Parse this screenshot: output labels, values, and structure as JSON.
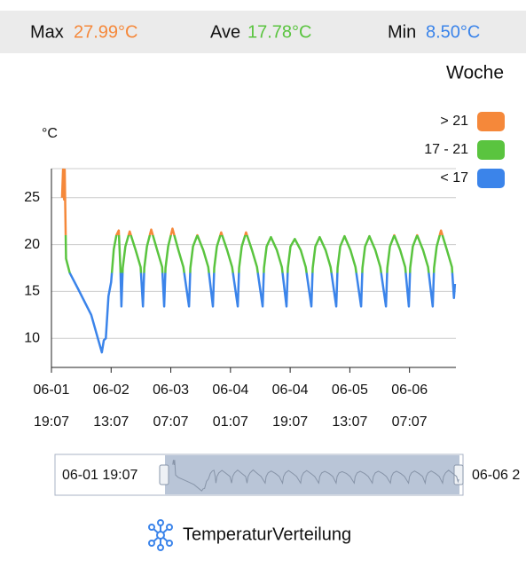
{
  "header": {
    "max_label": "Max",
    "max_value": "27.99°C",
    "ave_label": "Ave",
    "ave_value": "17.78°C",
    "min_label": "Min",
    "min_value": "8.50°C"
  },
  "chart_data": {
    "type": "line",
    "period": "Woche",
    "y_label": "°C",
    "bands": [
      {
        "label": "> 21",
        "color": "#f5883a",
        "min": 21
      },
      {
        "label": "17 - 21",
        "color": "#5ac43f",
        "min": 17,
        "max": 21
      },
      {
        "label": "< 17",
        "color": "#3b84ea",
        "max": 17
      }
    ],
    "xlim": [
      0,
      122
    ],
    "ylim": [
      6.9,
      28.1
    ],
    "yticks": [
      10,
      15,
      20,
      25
    ],
    "xticks": [
      {
        "value": 0,
        "label": "06-01 19:07"
      },
      {
        "value": 18,
        "label": "06-02 13:07"
      },
      {
        "value": 36,
        "label": "06-03 07:07"
      },
      {
        "value": 54,
        "label": "06-04 01:07"
      },
      {
        "value": 72,
        "label": "06-04 19:07"
      },
      {
        "value": 90,
        "label": "06-05 13:07"
      },
      {
        "value": 108,
        "label": "06-06 07:07"
      }
    ],
    "x": [
      3.2,
      3.5,
      3.8,
      4.0,
      4.4,
      5.5,
      8,
      12,
      15.2,
      15.8,
      16.4,
      17.2,
      18.0,
      18.8,
      19.6,
      20.3,
      20.8,
      21.1,
      21.5,
      22.3,
      23.6,
      25.4,
      26.9,
      27.6,
      28.0,
      28.8,
      30.1,
      31.9,
      33.4,
      34.0,
      34.4,
      35.2,
      36.5,
      38.3,
      39.8,
      41.5,
      41.9,
      42.7,
      44.0,
      45.8,
      47.3,
      48.7,
      49.1,
      49.9,
      51.2,
      53.0,
      54.5,
      56.2,
      56.6,
      57.4,
      58.7,
      60.5,
      62.0,
      63.7,
      64.1,
      64.9,
      66.2,
      68.0,
      69.5,
      70.9,
      71.3,
      72.1,
      73.4,
      75.2,
      76.7,
      78.4,
      78.8,
      79.6,
      80.9,
      82.7,
      84.2,
      85.9,
      86.3,
      87.1,
      88.4,
      90.2,
      91.7,
      93.4,
      93.8,
      94.6,
      95.9,
      97.7,
      99.2,
      100.9,
      101.3,
      102.1,
      103.4,
      105.2,
      106.7,
      107.8,
      108.2,
      109.0,
      110.3,
      112.1,
      113.6,
      115.0,
      115.4,
      116.2,
      117.5,
      119.3,
      120.8,
      121.4,
      121.7
    ],
    "values": [
      25.0,
      28.0,
      24.8,
      27.99,
      18.5,
      17.0,
      15.3,
      12.5,
      8.5,
      9.8,
      10.0,
      14.5,
      16.0,
      19.5,
      21.0,
      21.5,
      17.5,
      13.4,
      17.5,
      19.8,
      21.4,
      19.4,
      17.6,
      13.4,
      17.5,
      19.8,
      21.6,
      19.4,
      17.6,
      13.4,
      17.5,
      19.8,
      21.7,
      19.4,
      17.6,
      13.4,
      17.5,
      19.8,
      21.0,
      19.4,
      17.6,
      13.4,
      17.5,
      19.8,
      21.3,
      19.4,
      17.6,
      13.4,
      17.5,
      19.8,
      21.3,
      19.4,
      17.6,
      13.4,
      17.5,
      19.8,
      20.8,
      19.4,
      17.6,
      13.4,
      17.5,
      19.8,
      20.6,
      19.4,
      17.6,
      13.4,
      17.5,
      19.8,
      20.8,
      19.4,
      17.6,
      13.4,
      17.5,
      19.8,
      20.9,
      19.4,
      17.6,
      13.4,
      17.5,
      19.8,
      20.9,
      19.4,
      17.6,
      13.4,
      17.5,
      19.8,
      21.0,
      19.4,
      17.6,
      13.4,
      17.5,
      19.8,
      21.0,
      19.4,
      17.6,
      13.4,
      17.5,
      19.8,
      21.5,
      19.4,
      17.6,
      14.3,
      15.8
    ]
  },
  "navigator": {
    "start": "06-01 19:07",
    "end": "06-06 2"
  },
  "footer": {
    "button": "TemperaturVerteilung"
  }
}
